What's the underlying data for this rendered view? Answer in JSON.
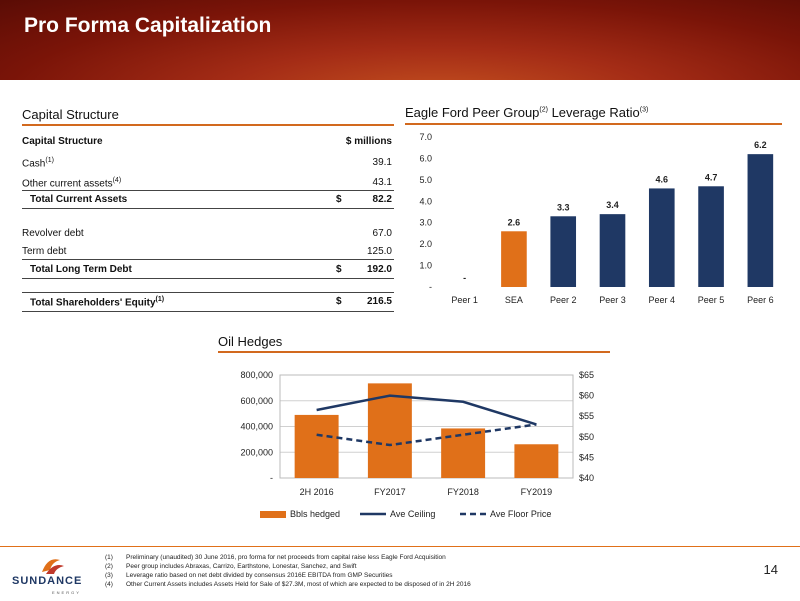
{
  "header": {
    "title": "Pro Forma Capitalization"
  },
  "capital_structure": {
    "section_title": "Capital Structure",
    "col_label": "Capital Structure",
    "col_units": "$ millions",
    "rows": [
      {
        "label": "Cash",
        "sup": "(1)",
        "dollar": "",
        "value": "39.1"
      },
      {
        "label": "Other current assets",
        "sup": "(4)",
        "dollar": "",
        "value": "43.1"
      },
      {
        "label": "Total Current Assets",
        "sup": "",
        "dollar": "$",
        "value": "82.2"
      },
      {
        "label": "Revolver debt",
        "sup": "",
        "dollar": "",
        "value": "67.0"
      },
      {
        "label": "Term debt",
        "sup": "",
        "dollar": "",
        "value": "125.0"
      },
      {
        "label": "Total Long Term Debt",
        "sup": "",
        "dollar": "$",
        "value": "192.0"
      },
      {
        "label": "Total Shareholders' Equity",
        "sup": "(1)",
        "dollar": "$",
        "value": "216.5"
      }
    ]
  },
  "leverage": {
    "title_main": "Eagle Ford Peer Group",
    "title_sup1": "(2)",
    "title_rest": " Leverage Ratio",
    "title_sup2": "(3)"
  },
  "hedges": {
    "title": "Oil Hedges"
  },
  "chart_data": [
    {
      "type": "bar",
      "title": "Eagle Ford Peer Group(2) Leverage Ratio(3)",
      "categories": [
        "Peer 1",
        "SEA",
        "Peer 2",
        "Peer 3",
        "Peer 4",
        "Peer 5",
        "Peer 6"
      ],
      "values": [
        0,
        2.6,
        3.3,
        3.4,
        4.6,
        4.7,
        6.2
      ],
      "data_labels": [
        "-",
        "2.6",
        "3.3",
        "3.4",
        "4.6",
        "4.7",
        "6.2"
      ],
      "bar_colors": [
        "#1f3864",
        "#e07019",
        "#1f3864",
        "#1f3864",
        "#1f3864",
        "#1f3864",
        "#1f3864"
      ],
      "ylim": [
        0,
        7
      ],
      "yticks": [
        0,
        1,
        2,
        3,
        4,
        5,
        6,
        7
      ],
      "ytick_labels": [
        "-",
        "1.0",
        "2.0",
        "3.0",
        "4.0",
        "5.0",
        "6.0",
        "7.0"
      ],
      "grid": false
    },
    {
      "type": "bar",
      "title": "Oil Hedges",
      "categories": [
        "2H 2016",
        "FY2017",
        "FY2018",
        "FY2019"
      ],
      "series": [
        {
          "name": "Bbls hedged",
          "type": "bar",
          "axis": "left",
          "color": "#e07019",
          "values": [
            490000,
            735000,
            385000,
            262000
          ]
        },
        {
          "name": "Ave Ceiling",
          "type": "line",
          "axis": "right",
          "color": "#1f3864",
          "values": [
            56.5,
            60.0,
            58.5,
            53.0
          ]
        },
        {
          "name": "Ave Floor Price",
          "type": "line-dashed",
          "axis": "right",
          "color": "#1f3864",
          "values": [
            50.5,
            48.0,
            50.5,
            53.0
          ]
        }
      ],
      "ylim_left": [
        0,
        800000
      ],
      "yticks_left": [
        0,
        200000,
        400000,
        600000,
        800000
      ],
      "ytick_labels_left": [
        "-",
        "200,000",
        "400,000",
        "600,000",
        "800,000"
      ],
      "ylim_right": [
        40,
        65
      ],
      "yticks_right": [
        40,
        45,
        50,
        55,
        60,
        65
      ],
      "ytick_labels_right": [
        "$40",
        "$45",
        "$50",
        "$55",
        "$60",
        "$65"
      ],
      "grid": true,
      "legend_position": "bottom"
    }
  ],
  "footnotes": [
    {
      "num": "(1)",
      "text": "Preliminary (unaudited) 30 June 2016, pro forma for net proceeds from capital raise less Eagle Ford Acquisition"
    },
    {
      "num": "(2)",
      "text": "Peer group includes Abraxas, Carrizo, Earthstone, Lonestar, Sanchez, and Swift"
    },
    {
      "num": "(3)",
      "text": "Leverage ratio based on net debt divided by consensus 2016E EBITDA from GMP Securities"
    },
    {
      "num": "(4)",
      "text": "Other Current Assets includes Assets Held for Sale of $27.3M, most of which are expected to be disposed of in 2H 2016"
    }
  ],
  "logo": {
    "text": "SUNDANCE",
    "subtext": "ENERGY"
  },
  "page_number": "14"
}
